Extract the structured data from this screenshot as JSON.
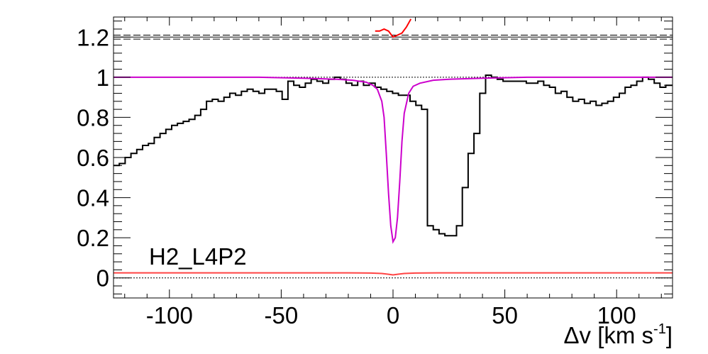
{
  "chart_data": {
    "type": "line",
    "xlabel": "Δv [km s",
    "xlabel_sup": "-1",
    "xlabel_close": "]",
    "xlim": [
      -125,
      125
    ],
    "ylim": [
      -0.1,
      1.3
    ],
    "xticks": [
      -100,
      -50,
      0,
      50,
      100
    ],
    "xtick_labels": [
      "-100",
      "-50",
      "0",
      "50",
      "100"
    ],
    "yticks": [
      0,
      0.2,
      0.4,
      0.6,
      0.8,
      1,
      1.2
    ],
    "ytick_labels": [
      "0",
      "0.2",
      "0.4",
      "0.6",
      "0.8",
      "1",
      "1.2"
    ],
    "annotation": "H2_L4P2",
    "colors": {
      "data": "#000000",
      "model": "#cc00cc",
      "residual": "#ff0000",
      "error": "#ff4444"
    },
    "continuum_level": 1.0,
    "zero_level": 0.0,
    "residual_band": {
      "center": 1.2,
      "upper": 1.21,
      "lower": 1.19
    },
    "series": [
      {
        "role": "data",
        "step": true,
        "x": [
          -125,
          -122.4,
          -119.8,
          -117.2,
          -114.6,
          -112,
          -109.4,
          -106.8,
          -104.2,
          -101.6,
          -99,
          -96.4,
          -93.8,
          -91.2,
          -88.6,
          -86,
          -83.4,
          -80.8,
          -78.2,
          -75.6,
          -73,
          -70.4,
          -67.8,
          -65.2,
          -62.6,
          -60,
          -57.4,
          -54.8,
          -52.2,
          -49.6,
          -47,
          -44.4,
          -41.8,
          -39.2,
          -36.6,
          -34,
          -31.4,
          -28.8,
          -26.2,
          -23.6,
          -21,
          -18.4,
          -15.8,
          -13.2,
          -10.6,
          -8,
          -5.4,
          -2.8,
          -0.2,
          2.4,
          5,
          7.6,
          10.2,
          12.8,
          15.4,
          18,
          20.6,
          23.2,
          25.8,
          28.4,
          31,
          33.6,
          36.2,
          38.8,
          41.4,
          44,
          46.6,
          49.2,
          51.8,
          54.4,
          57,
          59.6,
          62.2,
          64.8,
          67.4,
          70,
          72.6,
          75.2,
          77.8,
          80.4,
          83,
          85.6,
          88.2,
          90.8,
          93.4,
          96,
          98.6,
          101.2,
          103.8,
          106.4,
          109,
          111.6,
          114.2,
          116.8,
          119.4,
          122
        ],
        "y": [
          0.56,
          0.57,
          0.6,
          0.62,
          0.64,
          0.66,
          0.67,
          0.7,
          0.72,
          0.74,
          0.76,
          0.77,
          0.78,
          0.79,
          0.81,
          0.84,
          0.88,
          0.89,
          0.88,
          0.9,
          0.92,
          0.91,
          0.93,
          0.94,
          0.93,
          0.92,
          0.94,
          0.94,
          0.93,
          0.89,
          0.98,
          0.96,
          0.95,
          0.97,
          0.99,
          0.98,
          0.97,
          0.99,
          1.0,
          0.99,
          0.97,
          0.96,
          0.98,
          0.96,
          0.97,
          0.95,
          0.94,
          0.93,
          0.92,
          0.91,
          0.91,
          0.88,
          0.86,
          0.84,
          0.26,
          0.24,
          0.22,
          0.21,
          0.21,
          0.26,
          0.45,
          0.62,
          0.72,
          0.92,
          1.01,
          1.0,
          0.99,
          0.98,
          0.98,
          0.98,
          0.98,
          0.97,
          0.97,
          0.98,
          0.96,
          0.95,
          0.92,
          0.93,
          0.9,
          0.88,
          0.89,
          0.87,
          0.88,
          0.86,
          0.87,
          0.88,
          0.9,
          0.92,
          0.95,
          0.96,
          0.98,
          1.0,
          0.99,
          0.97,
          0.95,
          0.96
        ]
      },
      {
        "role": "model",
        "x": [
          -125,
          -60,
          -40,
          -25,
          -18,
          -12,
          -9,
          -7,
          -5,
          -4,
          -3,
          -2,
          -1,
          0,
          1,
          2,
          3,
          4,
          5,
          7,
          9,
          12,
          18,
          25,
          40,
          60,
          125
        ],
        "y": [
          1.0,
          1.0,
          0.995,
          0.99,
          0.985,
          0.975,
          0.96,
          0.94,
          0.88,
          0.8,
          0.62,
          0.42,
          0.26,
          0.18,
          0.2,
          0.3,
          0.48,
          0.68,
          0.82,
          0.92,
          0.955,
          0.97,
          0.985,
          0.99,
          0.995,
          1.0,
          1.0
        ]
      },
      {
        "role": "residual",
        "x": [
          -8,
          -6,
          -4,
          -2,
          0,
          2,
          4,
          6,
          8
        ],
        "y": [
          1.23,
          1.23,
          1.24,
          1.23,
          1.2,
          1.21,
          1.22,
          1.25,
          1.29
        ]
      },
      {
        "role": "error",
        "x": [
          -125,
          -100,
          -50,
          -20,
          -10,
          -5,
          -2,
          0,
          2,
          5,
          10,
          20,
          50,
          100,
          125
        ],
        "y": [
          0.025,
          0.025,
          0.025,
          0.025,
          0.024,
          0.022,
          0.018,
          0.015,
          0.018,
          0.022,
          0.024,
          0.025,
          0.025,
          0.025,
          0.025
        ]
      }
    ]
  }
}
